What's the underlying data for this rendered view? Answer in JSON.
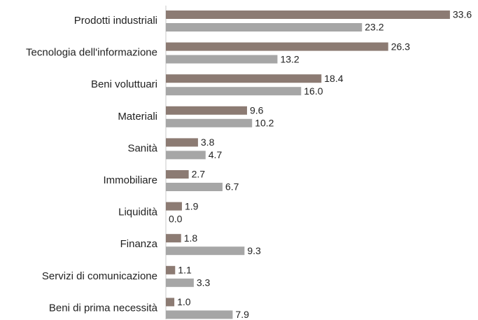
{
  "chart_data": {
    "type": "bar",
    "orientation": "horizontal",
    "categories": [
      "Prodotti industriali",
      "Tecnologia dell'informazione",
      "Beni voluttuari",
      "Materiali",
      "Sanità",
      "Immobiliare",
      "Liquidità",
      "Finanza",
      "Servizi di comunicazione",
      "Beni di prima necessità"
    ],
    "series": [
      {
        "color": "#8c7b73",
        "values": [
          33.6,
          26.3,
          18.4,
          9.6,
          3.8,
          2.7,
          1.9,
          1.8,
          1.1,
          1.0
        ],
        "value_labels": [
          "33.6",
          "26.3",
          "18.4",
          "9.6",
          "3.8",
          "2.7",
          "1.9",
          "1.8",
          "1.1",
          "1.0"
        ]
      },
      {
        "color": "#a6a6a6",
        "values": [
          23.2,
          13.2,
          16.0,
          10.2,
          4.7,
          6.7,
          0.0,
          9.3,
          3.3,
          7.9
        ],
        "value_labels": [
          "23.2",
          "13.2",
          "16.0",
          "10.2",
          "4.7",
          "6.7",
          "0.0",
          "9.3",
          "3.3",
          "7.9"
        ]
      }
    ]
  }
}
